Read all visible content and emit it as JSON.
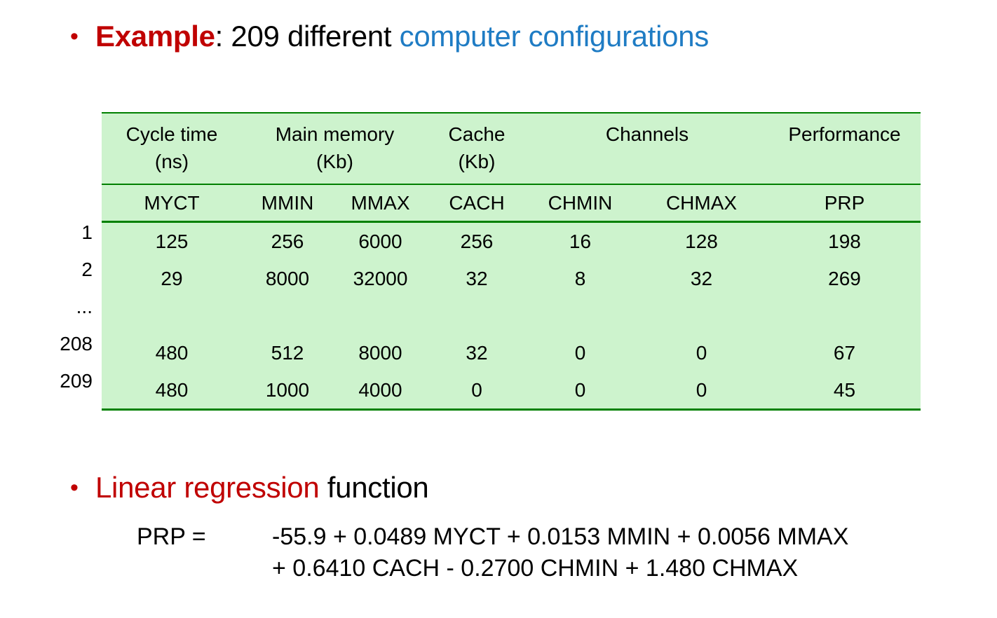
{
  "title": {
    "bullet": "•",
    "label_red": "Example",
    "label_black": ": 209 different ",
    "label_blue": "computer configurations"
  },
  "table": {
    "group_headers": [
      {
        "label": "Cycle time",
        "sub": "(ns)"
      },
      {
        "label": "Main memory",
        "sub": "(Kb)"
      },
      {
        "label": "Cache",
        "sub": "(Kb)"
      },
      {
        "label": "Channels",
        "sub": ""
      },
      {
        "label": "Performance",
        "sub": ""
      }
    ],
    "columns": [
      "MYCT",
      "MMIN",
      "MMAX",
      "CACH",
      "CHMIN",
      "CHMAX",
      "PRP"
    ],
    "rows": [
      {
        "index": "1",
        "values": [
          "125",
          "256",
          "6000",
          "256",
          "16",
          "128",
          "198"
        ]
      },
      {
        "index": "2",
        "values": [
          "29",
          "8000",
          "32000",
          "32",
          "8",
          "32",
          "269"
        ]
      },
      {
        "index": "...",
        "values": [
          "",
          "",
          "",
          "",
          "",
          "",
          ""
        ]
      },
      {
        "index": "208",
        "values": [
          "480",
          "512",
          "8000",
          "32",
          "0",
          "0",
          "67"
        ]
      },
      {
        "index": "209",
        "values": [
          "480",
          "1000",
          "4000",
          "0",
          "0",
          "0",
          "45"
        ]
      }
    ]
  },
  "regression": {
    "bullet": "•",
    "label_red": "Linear regression",
    "label_black": " function"
  },
  "formula": {
    "lhs": "PRP =",
    "line1": "-55.9 + 0.0489 MYCT + 0.0153 MMIN + 0.0056 MMAX",
    "line2": "+ 0.6410 CACH - 0.2700 CHMIN + 1.480 CHMAX"
  },
  "colors": {
    "accent_red": "#c00000",
    "accent_blue": "#1f7cc4",
    "table_background": "#cdf3cd",
    "table_border_green": "#008000"
  }
}
